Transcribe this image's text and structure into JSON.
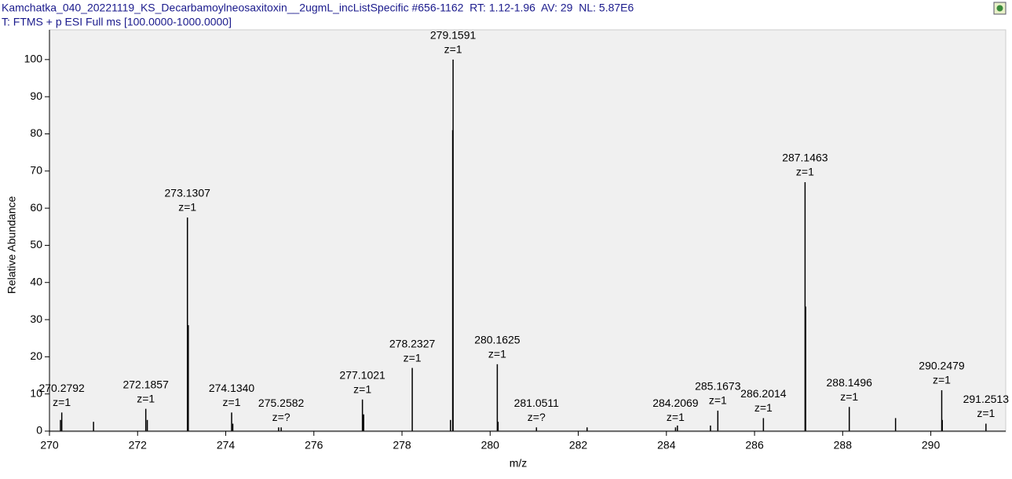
{
  "chart_data": {
    "type": "stick",
    "title": "Kamchatka_040_20221119_KS_Decarbamoylneosaxitoxin__2ugmL_incListSpecific #656-1162  RT: 1.12-1.96  AV: 29  NL: 5.87E6",
    "subtitle": "T: FTMS + p ESI Full ms [100.0000-1000.0000]",
    "x_label": "m/z",
    "y_label": "Relative Abundance",
    "xlim": [
      270,
      291.7
    ],
    "ylim": [
      0,
      108
    ],
    "xticks": [
      270,
      272,
      274,
      276,
      278,
      280,
      282,
      284,
      286,
      288,
      290
    ],
    "yticks": [
      0,
      10,
      20,
      30,
      40,
      50,
      60,
      70,
      80,
      90,
      100
    ],
    "color": "#000000",
    "series": [
      {
        "x": [
          270.2792,
          272.1857,
          273.1307,
          274.134,
          275.2582,
          277.1021,
          278.2327,
          279.1591,
          280.1625,
          281.0511,
          284.2069,
          285.1673,
          286.2014,
          287.1463,
          288.1496,
          290.2479,
          291.2513
        ],
        "values": [
          5,
          6,
          57.5,
          5,
          1,
          8.5,
          17,
          100,
          18,
          1,
          1,
          5.5,
          3.5,
          67,
          6.5,
          11,
          2
        ],
        "value_labels": [
          "270.2792",
          "272.1857",
          "273.1307",
          "274.1340",
          "275.2582",
          "277.1021",
          "278.2327",
          "279.1591",
          "280.1625",
          "281.0511",
          "284.2069",
          "285.1673",
          "286.2014",
          "287.1463",
          "288.1496",
          "290.2479",
          "291.2513"
        ],
        "charge_labels": [
          "z=1",
          "z=1",
          "z=1",
          "z=1",
          "z=?",
          "z=1",
          "z=1",
          "z=1",
          "z=1",
          "z=?",
          "z=1",
          "z=1",
          "z=1",
          "z=1",
          "z=1",
          "z=1",
          "z=1"
        ]
      },
      {
        "x": [
          270.25,
          271.0,
          272.22,
          273.15,
          274.16,
          277.13,
          279.15,
          279.1,
          280.18,
          284.25,
          285.0,
          287.16,
          289.2,
          290.26,
          275.2,
          282.2
        ],
        "values": [
          3,
          2.5,
          3,
          28.5,
          2,
          4.5,
          81,
          3,
          2.5,
          1.5,
          1.5,
          33.5,
          3.5,
          3,
          1,
          1
        ]
      }
    ]
  }
}
